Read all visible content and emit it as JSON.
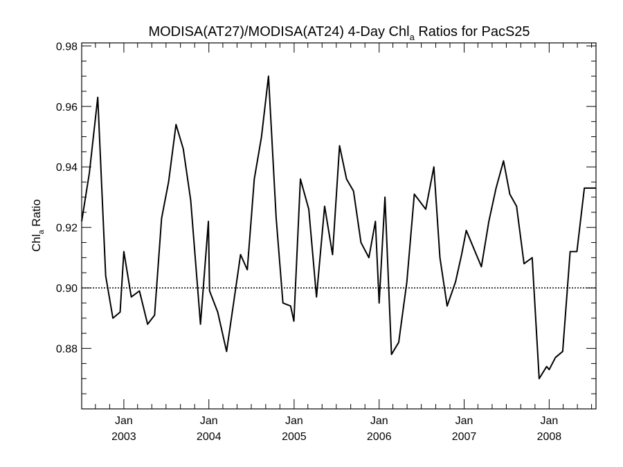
{
  "chart_data": {
    "type": "line",
    "title_main": "MODISA(AT27)/MODISA(AT24) 4-Day Chl",
    "title_sub": "a",
    "title_tail": " Ratios for PacS25",
    "ylabel_main": "Chl",
    "ylabel_sub": "a",
    "ylabel_tail": " Ratio",
    "xlabel": "",
    "xlim": [
      "2002-07-04",
      "2008-07-20"
    ],
    "ylim": [
      0.86,
      0.981
    ],
    "y_ticks": [
      {
        "value": 0.88,
        "label": "0.88"
      },
      {
        "value": 0.9,
        "label": "0.90"
      },
      {
        "value": 0.92,
        "label": "0.92"
      },
      {
        "value": 0.94,
        "label": "0.94"
      },
      {
        "value": 0.96,
        "label": "0.96"
      },
      {
        "value": 0.98,
        "label": "0.98"
      }
    ],
    "x_ticks": [
      {
        "date": "2003-01-01",
        "month": "Jan",
        "year": "2003"
      },
      {
        "date": "2004-01-01",
        "month": "Jan",
        "year": "2004"
      },
      {
        "date": "2005-01-01",
        "month": "Jan",
        "year": "2005"
      },
      {
        "date": "2006-01-01",
        "month": "Jan",
        "year": "2006"
      },
      {
        "date": "2007-01-01",
        "month": "Jan",
        "year": "2007"
      },
      {
        "date": "2008-01-01",
        "month": "Jan",
        "year": "2008"
      }
    ],
    "reference_line": {
      "y": 0.9,
      "style": "dotted"
    },
    "grid": false,
    "legend": "none",
    "line_color": "#000000",
    "series": [
      {
        "x": [
          "2002-07-04",
          "2002-08-06",
          "2002-09-11",
          "2002-10-15",
          "2002-11-15",
          "2002-12-16",
          "2003-01-01",
          "2003-02-02",
          "2003-03-09",
          "2003-04-13",
          "2003-05-13",
          "2003-06-12",
          "2003-07-12",
          "2003-08-13",
          "2003-09-13",
          "2003-10-15",
          "2003-11-26",
          "2003-12-30",
          "2004-01-04",
          "2004-02-08",
          "2004-03-17",
          "2004-04-18",
          "2004-05-16",
          "2004-06-14",
          "2004-07-14",
          "2004-08-14",
          "2004-09-13",
          "2004-10-16",
          "2004-11-14",
          "2004-12-17",
          "2004-12-31",
          "2005-01-28",
          "2005-03-05",
          "2005-04-07",
          "2005-05-12",
          "2005-06-15",
          "2005-07-15",
          "2005-08-14",
          "2005-09-13",
          "2005-10-15",
          "2005-11-18",
          "2005-12-16",
          "2006-01-01",
          "2006-01-26",
          "2006-02-23",
          "2006-03-26",
          "2006-04-30",
          "2006-06-01",
          "2006-07-20",
          "2006-08-24",
          "2006-09-19",
          "2006-10-20",
          "2006-11-25",
          "2006-12-21",
          "2007-01-10",
          "2007-03-16",
          "2007-04-17",
          "2007-05-18",
          "2007-06-19",
          "2007-07-16",
          "2007-08-14",
          "2007-09-15",
          "2007-10-20",
          "2007-11-19",
          "2007-12-21",
          "2008-01-01",
          "2008-01-28",
          "2008-02-28",
          "2008-03-31",
          "2008-04-29",
          "2008-05-31",
          "2008-06-30",
          "2008-07-20"
        ],
        "y": [
          0.922,
          0.938,
          0.963,
          0.904,
          0.89,
          0.892,
          0.912,
          0.897,
          0.899,
          0.888,
          0.891,
          0.923,
          0.935,
          0.954,
          0.946,
          0.929,
          0.888,
          0.922,
          0.899,
          0.892,
          0.879,
          0.896,
          0.911,
          0.906,
          0.936,
          0.95,
          0.97,
          0.923,
          0.895,
          0.894,
          0.889,
          0.936,
          0.926,
          0.897,
          0.927,
          0.911,
          0.947,
          0.936,
          0.932,
          0.915,
          0.91,
          0.922,
          0.895,
          0.93,
          0.878,
          0.882,
          0.902,
          0.931,
          0.926,
          0.94,
          0.91,
          0.894,
          0.902,
          0.911,
          0.919,
          0.907,
          0.922,
          0.933,
          0.942,
          0.931,
          0.927,
          0.908,
          0.91,
          0.87,
          0.874,
          0.873,
          0.877,
          0.879,
          0.912,
          0.912,
          0.933,
          0.933,
          0.933
        ]
      }
    ]
  }
}
